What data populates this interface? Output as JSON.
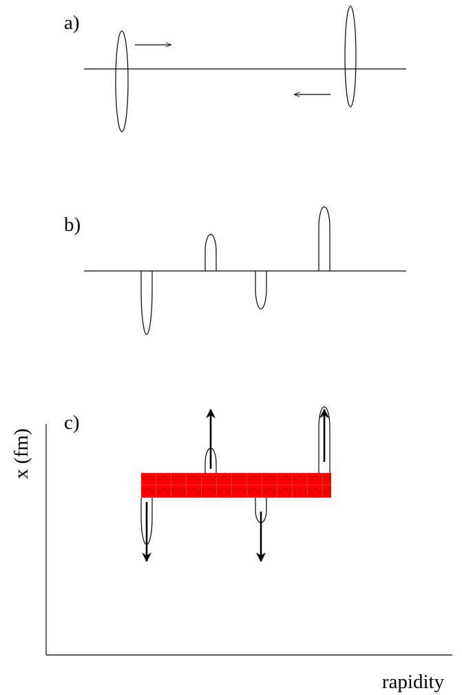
{
  "panels": [
    {
      "label": "a)"
    },
    {
      "label": "b)"
    },
    {
      "label": "c)"
    }
  ],
  "axes": {
    "y_label": "x (fm)",
    "x_label": "rapidity"
  }
}
